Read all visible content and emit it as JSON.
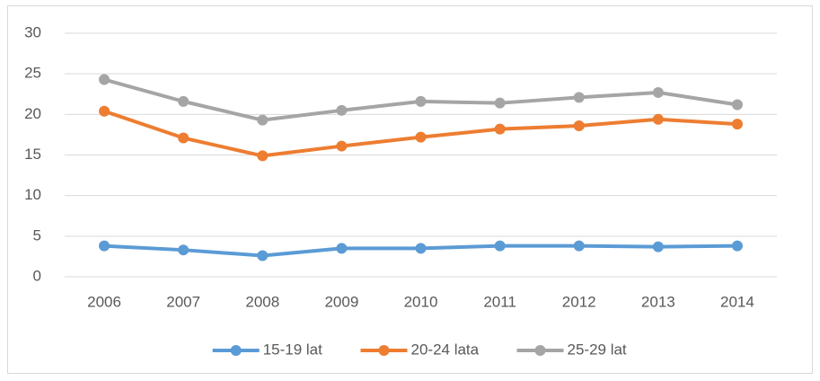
{
  "chart_data": {
    "type": "line",
    "categories": [
      "2006",
      "2007",
      "2008",
      "2009",
      "2010",
      "2011",
      "2012",
      "2013",
      "2014"
    ],
    "series": [
      {
        "name": "15-19 lat",
        "color": "#5b9bd5",
        "values": [
          3.8,
          3.3,
          2.6,
          3.5,
          3.5,
          3.8,
          3.8,
          3.7,
          3.8
        ]
      },
      {
        "name": "20-24 lata",
        "color": "#ed7d31",
        "values": [
          20.4,
          17.1,
          14.9,
          16.1,
          17.2,
          18.2,
          18.6,
          19.4,
          18.8
        ]
      },
      {
        "name": "25-29 lat",
        "color": "#a5a5a5",
        "values": [
          24.3,
          21.6,
          19.3,
          20.5,
          21.6,
          21.4,
          22.1,
          22.7,
          21.2
        ]
      }
    ],
    "ylim": [
      0,
      30
    ],
    "yticks": [
      0,
      5,
      10,
      15,
      20,
      25,
      30
    ],
    "grid": true,
    "legend": "bottom"
  }
}
